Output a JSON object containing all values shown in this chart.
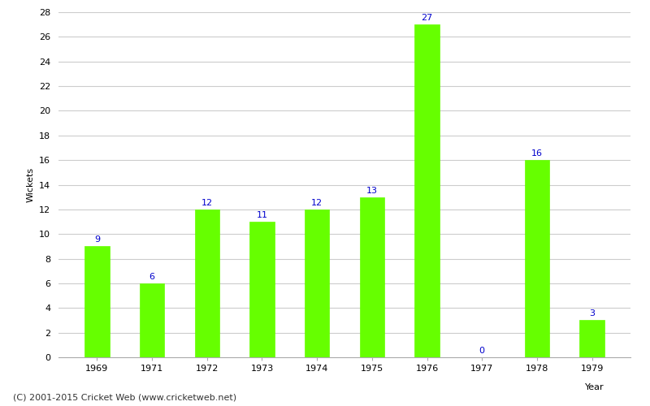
{
  "years": [
    "1969",
    "1971",
    "1972",
    "1973",
    "1974",
    "1975",
    "1976",
    "1977",
    "1978",
    "1979"
  ],
  "values": [
    9,
    6,
    12,
    11,
    12,
    13,
    27,
    0,
    16,
    3
  ],
  "bar_color": "#66ff00",
  "bar_edge_color": "#66ff00",
  "label_color": "#0000cc",
  "ylabel": "Wickets",
  "xlabel": "Year",
  "ylim": [
    0,
    28
  ],
  "yticks": [
    0,
    2,
    4,
    6,
    8,
    10,
    12,
    14,
    16,
    18,
    20,
    22,
    24,
    26,
    28
  ],
  "grid_color": "#cccccc",
  "bg_color": "#ffffff",
  "footer": "(C) 2001-2015 Cricket Web (www.cricketweb.net)",
  "label_fontsize": 8,
  "axis_fontsize": 8,
  "footer_fontsize": 8,
  "bar_width": 0.45
}
